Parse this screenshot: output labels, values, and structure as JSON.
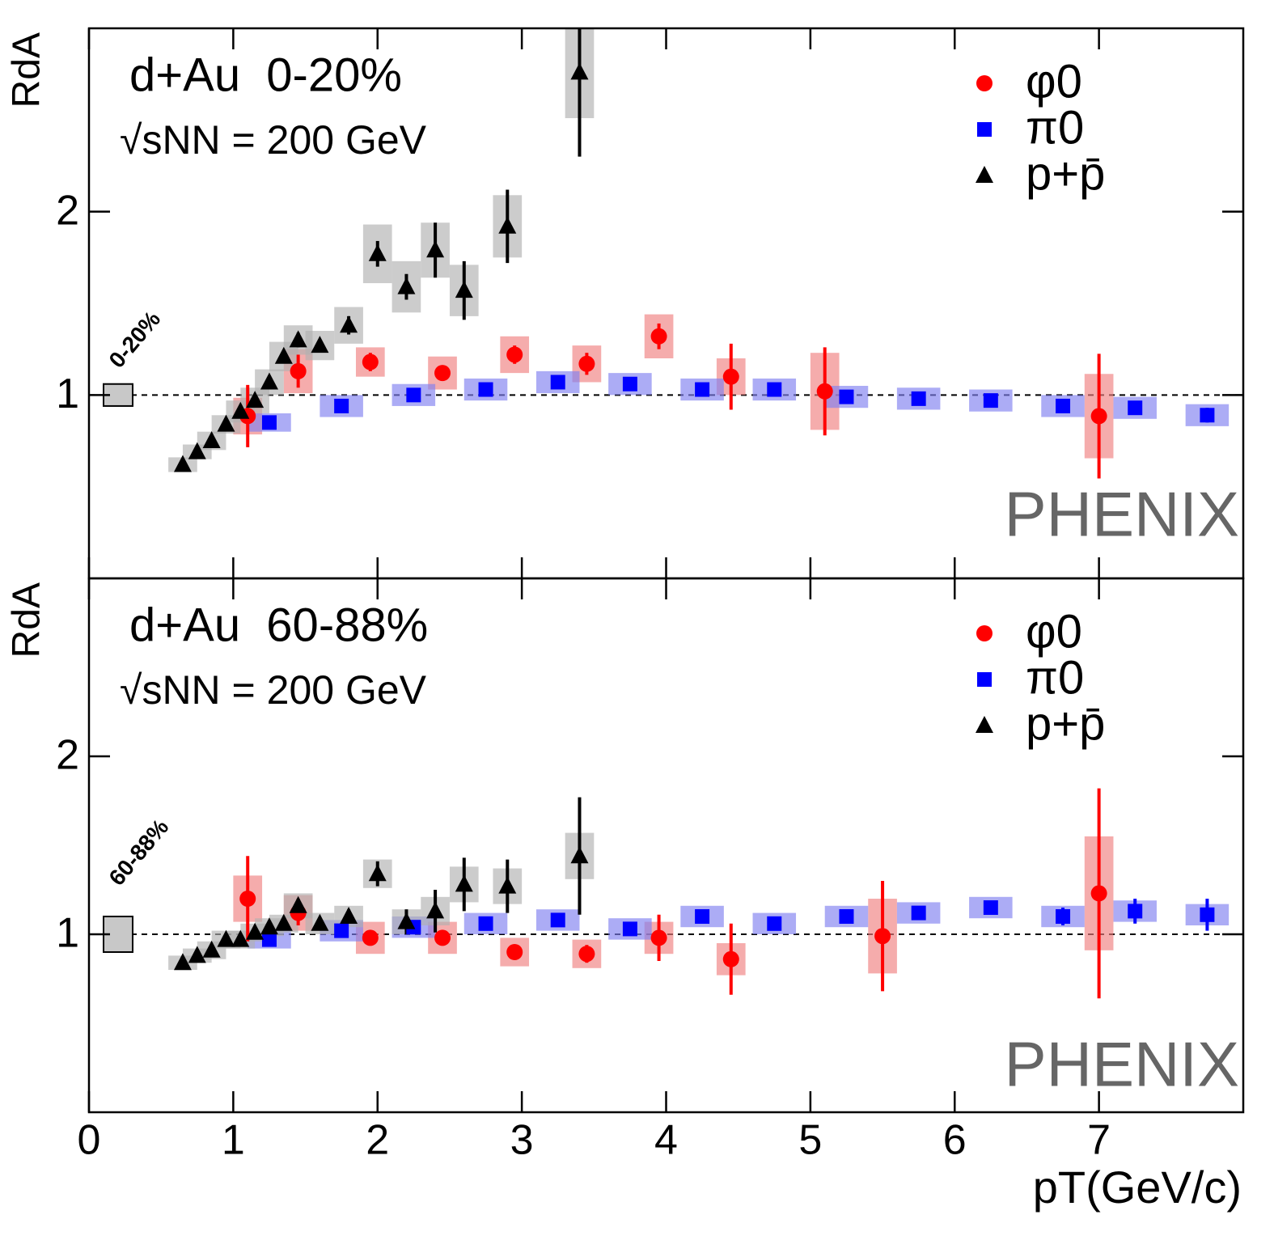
{
  "chart_data": [
    {
      "type": "scatter",
      "title": "d+Au  0-20%",
      "subtitle": "√sNN = 200 GeV",
      "annotation": "0-20%",
      "watermark": "PHENIX",
      "y_label": "RdA",
      "xlim": [
        0,
        8
      ],
      "ylim": [
        0,
        3
      ],
      "yticks": [
        1,
        2
      ],
      "reference_line": 1,
      "norm_uncertainty": 0.06,
      "series": [
        {
          "name": "φ0",
          "marker": "circle",
          "color": "#ff0000",
          "box_color": "#f08080",
          "x": [
            1.1,
            1.45,
            1.95,
            2.45,
            2.95,
            3.45,
            3.95,
            4.45,
            5.1,
            7.0
          ],
          "values": [
            0.885,
            1.13,
            1.18,
            1.12,
            1.22,
            1.17,
            1.32,
            1.1,
            1.02,
            0.885
          ],
          "errors": [
            0.17,
            0.09,
            0.05,
            0.04,
            0.05,
            0.06,
            0.07,
            0.18,
            0.24,
            0.34
          ],
          "sys": [
            0.1,
            0.12,
            0.08,
            0.09,
            0.1,
            0.1,
            0.12,
            0.1,
            0.21,
            0.23
          ]
        },
        {
          "name": "π0",
          "marker": "square",
          "color": "#0000ff",
          "box_color": "#8080f0",
          "x": [
            1.25,
            1.75,
            2.25,
            2.75,
            3.25,
            3.75,
            4.25,
            4.75,
            5.25,
            5.75,
            6.25,
            6.75,
            7.25,
            7.75
          ],
          "values": [
            0.85,
            0.94,
            1.0,
            1.03,
            1.07,
            1.06,
            1.03,
            1.03,
            0.99,
            0.98,
            0.97,
            0.94,
            0.93,
            0.89
          ],
          "errors": [
            0.03,
            0.02,
            0.02,
            0.02,
            0.02,
            0.02,
            0.02,
            0.02,
            0.02,
            0.02,
            0.02,
            0.02,
            0.03,
            0.04
          ],
          "sys": [
            0.05,
            0.06,
            0.06,
            0.06,
            0.06,
            0.06,
            0.06,
            0.06,
            0.06,
            0.06,
            0.06,
            0.06,
            0.06,
            0.06
          ]
        },
        {
          "name": "p+p̄",
          "marker": "triangle",
          "color": "#000000",
          "box_color": "#b0b0b0",
          "x": [
            0.65,
            0.75,
            0.85,
            0.95,
            1.05,
            1.15,
            1.25,
            1.35,
            1.45,
            1.6,
            1.8,
            2.0,
            2.2,
            2.4,
            2.6,
            2.9,
            3.4
          ],
          "values": [
            0.62,
            0.69,
            0.75,
            0.84,
            0.91,
            0.97,
            1.07,
            1.21,
            1.3,
            1.27,
            1.38,
            1.77,
            1.59,
            1.79,
            1.57,
            1.92,
            2.76
          ],
          "errors": [
            0.02,
            0.02,
            0.02,
            0.02,
            0.02,
            0.02,
            0.03,
            0.03,
            0.04,
            0.03,
            0.05,
            0.07,
            0.07,
            0.15,
            0.16,
            0.2,
            0.46
          ],
          "sys": [
            0.04,
            0.04,
            0.05,
            0.05,
            0.06,
            0.07,
            0.07,
            0.08,
            0.08,
            0.08,
            0.1,
            0.16,
            0.14,
            0.15,
            0.14,
            0.17,
            0.25
          ]
        }
      ]
    },
    {
      "type": "scatter",
      "title": "d+Au  60-88%",
      "subtitle": "√sNN = 200 GeV",
      "annotation": "60-88%",
      "watermark": "PHENIX",
      "y_label": "RdA",
      "x_label": "pT(GeV/c)",
      "xlim": [
        0,
        8
      ],
      "ylim": [
        0,
        3
      ],
      "xticks": [
        0,
        1,
        2,
        3,
        4,
        5,
        6,
        7
      ],
      "yticks": [
        1,
        2
      ],
      "reference_line": 1,
      "norm_uncertainty": 0.1,
      "series": [
        {
          "name": "φ0",
          "marker": "circle",
          "color": "#ff0000",
          "box_color": "#f08080",
          "x": [
            1.1,
            1.45,
            1.95,
            2.45,
            2.95,
            3.45,
            3.95,
            4.45,
            5.5,
            7.0
          ],
          "values": [
            1.2,
            1.12,
            0.98,
            0.98,
            0.9,
            0.89,
            0.98,
            0.86,
            0.99,
            1.23
          ],
          "errors": [
            0.24,
            0.07,
            0.04,
            0.04,
            0.04,
            0.05,
            0.13,
            0.2,
            0.31,
            0.59
          ],
          "sys": [
            0.13,
            0.1,
            0.09,
            0.09,
            0.08,
            0.08,
            0.09,
            0.09,
            0.21,
            0.32
          ]
        },
        {
          "name": "π0",
          "marker": "square",
          "color": "#0000ff",
          "box_color": "#8080f0",
          "x": [
            1.25,
            1.75,
            2.25,
            2.75,
            3.25,
            3.75,
            4.25,
            4.75,
            5.25,
            5.75,
            6.25,
            6.75,
            7.25,
            7.75
          ],
          "values": [
            0.97,
            1.02,
            1.04,
            1.06,
            1.08,
            1.03,
            1.1,
            1.06,
            1.1,
            1.12,
            1.15,
            1.1,
            1.13,
            1.11
          ],
          "errors": [
            0.03,
            0.02,
            0.02,
            0.02,
            0.02,
            0.02,
            0.03,
            0.02,
            0.03,
            0.03,
            0.04,
            0.05,
            0.07,
            0.09
          ],
          "sys": [
            0.05,
            0.06,
            0.06,
            0.06,
            0.06,
            0.06,
            0.06,
            0.06,
            0.06,
            0.06,
            0.06,
            0.06,
            0.06,
            0.06
          ]
        },
        {
          "name": "p+p̄",
          "marker": "triangle",
          "color": "#000000",
          "box_color": "#b0b0b0",
          "x": [
            0.65,
            0.75,
            0.85,
            0.95,
            1.05,
            1.15,
            1.25,
            1.35,
            1.45,
            1.6,
            1.8,
            2.0,
            2.2,
            2.4,
            2.6,
            2.9,
            3.4
          ],
          "values": [
            0.84,
            0.88,
            0.91,
            0.97,
            0.97,
            1.01,
            1.04,
            1.06,
            1.16,
            1.06,
            1.1,
            1.34,
            1.07,
            1.13,
            1.28,
            1.27,
            1.44
          ],
          "errors": [
            0.02,
            0.02,
            0.02,
            0.02,
            0.02,
            0.02,
            0.03,
            0.03,
            0.04,
            0.03,
            0.04,
            0.07,
            0.07,
            0.12,
            0.15,
            0.15,
            0.33
          ],
          "sys": [
            0.04,
            0.04,
            0.05,
            0.05,
            0.05,
            0.05,
            0.05,
            0.05,
            0.07,
            0.06,
            0.06,
            0.08,
            0.07,
            0.08,
            0.1,
            0.1,
            0.13
          ]
        }
      ]
    }
  ]
}
